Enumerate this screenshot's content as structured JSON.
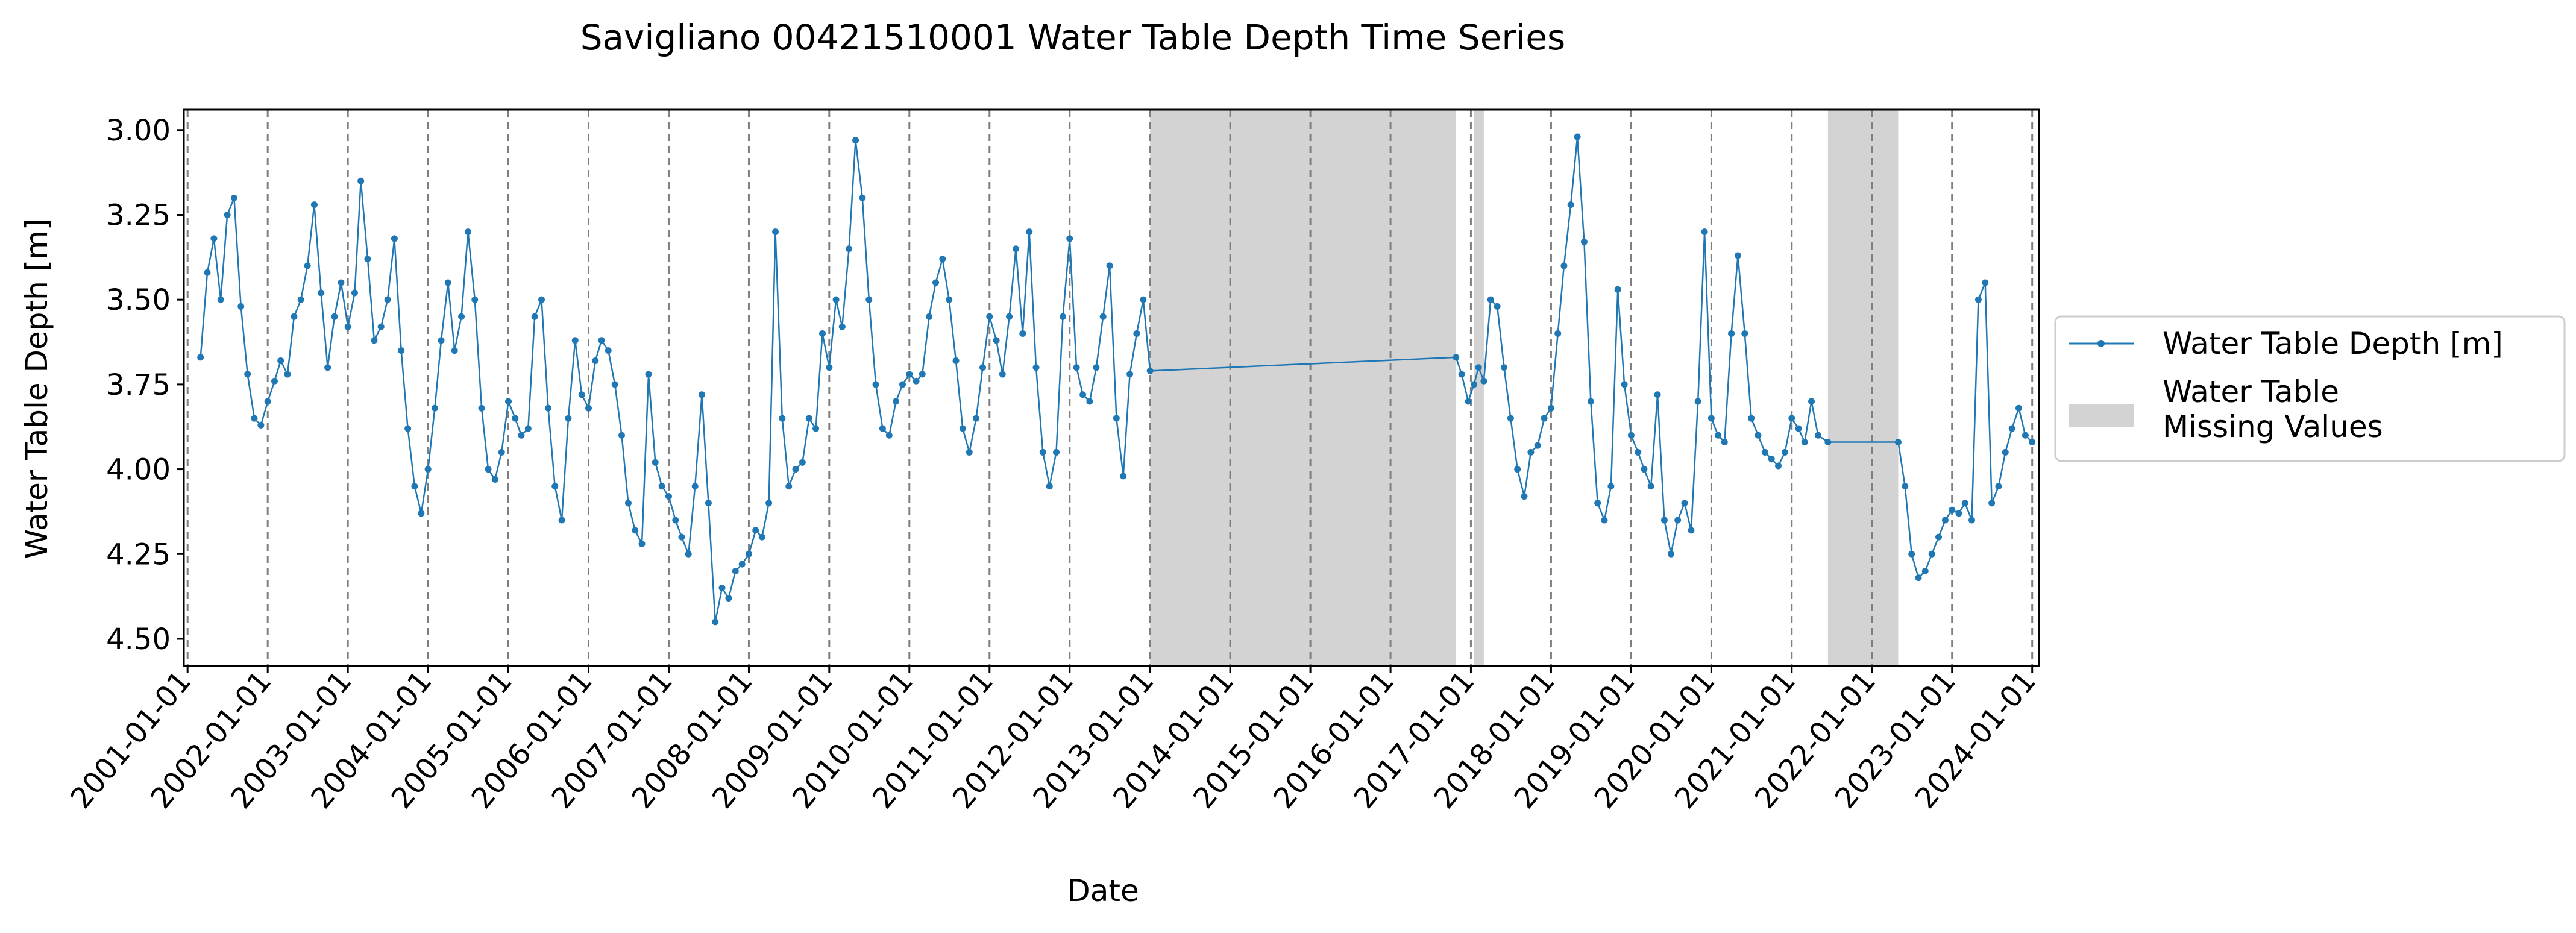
{
  "chart_data": {
    "type": "line",
    "title": "Savigliano 00421510001 Water Table Depth  Time Series",
    "xlabel": "Date",
    "ylabel": "Water Table Depth [m]",
    "x_type": "date",
    "xlim": [
      "2000-12-15",
      "2024-02-01"
    ],
    "ylim": [
      4.58,
      2.94
    ],
    "y_inverted": true,
    "xticks": [
      "2001-01-01",
      "2002-01-01",
      "2003-01-01",
      "2004-01-01",
      "2005-01-01",
      "2006-01-01",
      "2007-01-01",
      "2008-01-01",
      "2009-01-01",
      "2010-01-01",
      "2011-01-01",
      "2012-01-01",
      "2013-01-01",
      "2014-01-01",
      "2015-01-01",
      "2016-01-01",
      "2017-01-01",
      "2018-01-01",
      "2019-01-01",
      "2020-01-01",
      "2021-01-01",
      "2022-01-01",
      "2023-01-01",
      "2024-01-01"
    ],
    "yticks": [
      3.0,
      3.25,
      3.5,
      3.75,
      4.0,
      4.25,
      4.5
    ],
    "ytick_labels": [
      "3.00",
      "3.25",
      "3.50",
      "3.75",
      "4.00",
      "4.25",
      "4.50"
    ],
    "vertical_gridlines": "dashed at each year start",
    "legend_position": "outside right",
    "series": [
      {
        "name": "Water Table Depth [m]",
        "color": "#1f77b4",
        "marker": "dot",
        "points": [
          [
            "2001-03-01",
            3.67
          ],
          [
            "2001-04-01",
            3.42
          ],
          [
            "2001-05-01",
            3.32
          ],
          [
            "2001-06-01",
            3.5
          ],
          [
            "2001-07-01",
            3.25
          ],
          [
            "2001-08-01",
            3.2
          ],
          [
            "2001-09-01",
            3.52
          ],
          [
            "2001-10-01",
            3.72
          ],
          [
            "2001-11-01",
            3.85
          ],
          [
            "2001-12-01",
            3.87
          ],
          [
            "2002-01-01",
            3.8
          ],
          [
            "2002-02-01",
            3.74
          ],
          [
            "2002-03-01",
            3.68
          ],
          [
            "2002-04-01",
            3.72
          ],
          [
            "2002-05-01",
            3.55
          ],
          [
            "2002-06-01",
            3.5
          ],
          [
            "2002-07-01",
            3.4
          ],
          [
            "2002-08-01",
            3.22
          ],
          [
            "2002-09-01",
            3.48
          ],
          [
            "2002-10-01",
            3.7
          ],
          [
            "2002-11-01",
            3.55
          ],
          [
            "2002-12-01",
            3.45
          ],
          [
            "2003-01-01",
            3.58
          ],
          [
            "2003-02-01",
            3.48
          ],
          [
            "2003-03-01",
            3.15
          ],
          [
            "2003-04-01",
            3.38
          ],
          [
            "2003-05-01",
            3.62
          ],
          [
            "2003-06-01",
            3.58
          ],
          [
            "2003-07-01",
            3.5
          ],
          [
            "2003-08-01",
            3.32
          ],
          [
            "2003-09-01",
            3.65
          ],
          [
            "2003-10-01",
            3.88
          ],
          [
            "2003-11-01",
            4.05
          ],
          [
            "2003-12-01",
            4.13
          ],
          [
            "2004-01-01",
            4.0
          ],
          [
            "2004-02-01",
            3.82
          ],
          [
            "2004-03-01",
            3.62
          ],
          [
            "2004-04-01",
            3.45
          ],
          [
            "2004-05-01",
            3.65
          ],
          [
            "2004-06-01",
            3.55
          ],
          [
            "2004-07-01",
            3.3
          ],
          [
            "2004-08-01",
            3.5
          ],
          [
            "2004-09-01",
            3.82
          ],
          [
            "2004-10-01",
            4.0
          ],
          [
            "2004-11-01",
            4.03
          ],
          [
            "2004-12-01",
            3.95
          ],
          [
            "2005-01-01",
            3.8
          ],
          [
            "2005-02-01",
            3.85
          ],
          [
            "2005-03-01",
            3.9
          ],
          [
            "2005-04-01",
            3.88
          ],
          [
            "2005-05-01",
            3.55
          ],
          [
            "2005-06-01",
            3.5
          ],
          [
            "2005-07-01",
            3.82
          ],
          [
            "2005-08-01",
            4.05
          ],
          [
            "2005-09-01",
            4.15
          ],
          [
            "2005-10-01",
            3.85
          ],
          [
            "2005-11-01",
            3.62
          ],
          [
            "2005-12-01",
            3.78
          ],
          [
            "2006-01-01",
            3.82
          ],
          [
            "2006-02-01",
            3.68
          ],
          [
            "2006-03-01",
            3.62
          ],
          [
            "2006-04-01",
            3.65
          ],
          [
            "2006-05-01",
            3.75
          ],
          [
            "2006-06-01",
            3.9
          ],
          [
            "2006-07-01",
            4.1
          ],
          [
            "2006-08-01",
            4.18
          ],
          [
            "2006-09-01",
            4.22
          ],
          [
            "2006-10-01",
            3.72
          ],
          [
            "2006-11-01",
            3.98
          ],
          [
            "2006-12-01",
            4.05
          ],
          [
            "2007-01-01",
            4.08
          ],
          [
            "2007-02-01",
            4.15
          ],
          [
            "2007-03-01",
            4.2
          ],
          [
            "2007-04-01",
            4.25
          ],
          [
            "2007-05-01",
            4.05
          ],
          [
            "2007-06-01",
            3.78
          ],
          [
            "2007-07-01",
            4.1
          ],
          [
            "2007-08-01",
            4.45
          ],
          [
            "2007-09-01",
            4.35
          ],
          [
            "2007-10-01",
            4.38
          ],
          [
            "2007-11-01",
            4.3
          ],
          [
            "2007-12-01",
            4.28
          ],
          [
            "2008-01-01",
            4.25
          ],
          [
            "2008-02-01",
            4.18
          ],
          [
            "2008-03-01",
            4.2
          ],
          [
            "2008-04-01",
            4.1
          ],
          [
            "2008-05-01",
            3.3
          ],
          [
            "2008-06-01",
            3.85
          ],
          [
            "2008-07-01",
            4.05
          ],
          [
            "2008-08-01",
            4.0
          ],
          [
            "2008-09-01",
            3.98
          ],
          [
            "2008-10-01",
            3.85
          ],
          [
            "2008-11-01",
            3.88
          ],
          [
            "2008-12-01",
            3.6
          ],
          [
            "2009-01-01",
            3.7
          ],
          [
            "2009-02-01",
            3.5
          ],
          [
            "2009-03-01",
            3.58
          ],
          [
            "2009-04-01",
            3.35
          ],
          [
            "2009-05-01",
            3.03
          ],
          [
            "2009-06-01",
            3.2
          ],
          [
            "2009-07-01",
            3.5
          ],
          [
            "2009-08-01",
            3.75
          ],
          [
            "2009-09-01",
            3.88
          ],
          [
            "2009-10-01",
            3.9
          ],
          [
            "2009-11-01",
            3.8
          ],
          [
            "2009-12-01",
            3.75
          ],
          [
            "2010-01-01",
            3.72
          ],
          [
            "2010-02-01",
            3.74
          ],
          [
            "2010-03-01",
            3.72
          ],
          [
            "2010-04-01",
            3.55
          ],
          [
            "2010-05-01",
            3.45
          ],
          [
            "2010-06-01",
            3.38
          ],
          [
            "2010-07-01",
            3.5
          ],
          [
            "2010-08-01",
            3.68
          ],
          [
            "2010-09-01",
            3.88
          ],
          [
            "2010-10-01",
            3.95
          ],
          [
            "2010-11-01",
            3.85
          ],
          [
            "2010-12-01",
            3.7
          ],
          [
            "2011-01-01",
            3.55
          ],
          [
            "2011-02-01",
            3.62
          ],
          [
            "2011-03-01",
            3.72
          ],
          [
            "2011-04-01",
            3.55
          ],
          [
            "2011-05-01",
            3.35
          ],
          [
            "2011-06-01",
            3.6
          ],
          [
            "2011-07-01",
            3.3
          ],
          [
            "2011-08-01",
            3.7
          ],
          [
            "2011-09-01",
            3.95
          ],
          [
            "2011-10-01",
            4.05
          ],
          [
            "2011-11-01",
            3.95
          ],
          [
            "2011-12-01",
            3.55
          ],
          [
            "2012-01-01",
            3.32
          ],
          [
            "2012-02-01",
            3.7
          ],
          [
            "2012-03-01",
            3.78
          ],
          [
            "2012-04-01",
            3.8
          ],
          [
            "2012-05-01",
            3.7
          ],
          [
            "2012-06-01",
            3.55
          ],
          [
            "2012-07-01",
            3.4
          ],
          [
            "2012-08-01",
            3.85
          ],
          [
            "2012-09-01",
            4.02
          ],
          [
            "2012-10-01",
            3.72
          ],
          [
            "2012-11-01",
            3.6
          ],
          [
            "2012-12-01",
            3.5
          ],
          [
            "2013-01-01",
            3.71
          ],
          [
            "2016-10-25",
            3.67
          ],
          [
            "2016-11-20",
            3.72
          ],
          [
            "2016-12-20",
            3.8
          ],
          [
            "2017-01-15",
            3.75
          ],
          [
            "2017-02-05",
            3.7
          ],
          [
            "2017-03-01",
            3.74
          ],
          [
            "2017-04-01",
            3.5
          ],
          [
            "2017-05-01",
            3.52
          ],
          [
            "2017-06-01",
            3.7
          ],
          [
            "2017-07-01",
            3.85
          ],
          [
            "2017-08-01",
            4.0
          ],
          [
            "2017-09-01",
            4.08
          ],
          [
            "2017-10-01",
            3.95
          ],
          [
            "2017-11-01",
            3.93
          ],
          [
            "2017-12-01",
            3.85
          ],
          [
            "2018-01-01",
            3.82
          ],
          [
            "2018-02-01",
            3.6
          ],
          [
            "2018-03-01",
            3.4
          ],
          [
            "2018-04-01",
            3.22
          ],
          [
            "2018-05-01",
            3.02
          ],
          [
            "2018-06-01",
            3.33
          ],
          [
            "2018-07-01",
            3.8
          ],
          [
            "2018-08-01",
            4.1
          ],
          [
            "2018-09-01",
            4.15
          ],
          [
            "2018-10-01",
            4.05
          ],
          [
            "2018-11-01",
            3.47
          ],
          [
            "2018-12-01",
            3.75
          ],
          [
            "2019-01-01",
            3.9
          ],
          [
            "2019-02-01",
            3.95
          ],
          [
            "2019-03-01",
            4.0
          ],
          [
            "2019-04-01",
            4.05
          ],
          [
            "2019-05-01",
            3.78
          ],
          [
            "2019-06-01",
            4.15
          ],
          [
            "2019-07-01",
            4.25
          ],
          [
            "2019-08-01",
            4.15
          ],
          [
            "2019-09-01",
            4.1
          ],
          [
            "2019-10-01",
            4.18
          ],
          [
            "2019-11-01",
            3.8
          ],
          [
            "2019-12-01",
            3.3
          ],
          [
            "2020-01-01",
            3.85
          ],
          [
            "2020-02-01",
            3.9
          ],
          [
            "2020-03-01",
            3.92
          ],
          [
            "2020-04-01",
            3.6
          ],
          [
            "2020-05-01",
            3.37
          ],
          [
            "2020-06-01",
            3.6
          ],
          [
            "2020-07-01",
            3.85
          ],
          [
            "2020-08-01",
            3.9
          ],
          [
            "2020-09-01",
            3.95
          ],
          [
            "2020-10-01",
            3.97
          ],
          [
            "2020-11-01",
            3.99
          ],
          [
            "2020-12-01",
            3.95
          ],
          [
            "2021-01-01",
            3.85
          ],
          [
            "2021-02-01",
            3.88
          ],
          [
            "2021-03-01",
            3.92
          ],
          [
            "2021-04-01",
            3.8
          ],
          [
            "2021-05-01",
            3.9
          ],
          [
            "2021-06-15",
            3.92
          ],
          [
            "2022-05-01",
            3.92
          ],
          [
            "2022-06-01",
            4.05
          ],
          [
            "2022-07-01",
            4.25
          ],
          [
            "2022-08-01",
            4.32
          ],
          [
            "2022-09-01",
            4.3
          ],
          [
            "2022-10-01",
            4.25
          ],
          [
            "2022-11-01",
            4.2
          ],
          [
            "2022-12-01",
            4.15
          ],
          [
            "2023-01-01",
            4.12
          ],
          [
            "2023-02-01",
            4.13
          ],
          [
            "2023-03-01",
            4.1
          ],
          [
            "2023-04-01",
            4.15
          ],
          [
            "2023-05-01",
            3.5
          ],
          [
            "2023-06-01",
            3.45
          ],
          [
            "2023-07-01",
            4.1
          ],
          [
            "2023-08-01",
            4.05
          ],
          [
            "2023-09-01",
            3.95
          ],
          [
            "2023-10-01",
            3.88
          ],
          [
            "2023-11-01",
            3.82
          ],
          [
            "2023-12-01",
            3.9
          ],
          [
            "2024-01-01",
            3.92
          ]
        ]
      }
    ],
    "missing_value_bands": {
      "label": "Water Table\nMissing Values",
      "color": "#d3d3d3",
      "ranges": [
        [
          "2013-01-01",
          "2016-10-25"
        ],
        [
          "2017-01-15",
          "2017-03-01"
        ],
        [
          "2021-06-15",
          "2022-05-01"
        ]
      ]
    }
  }
}
